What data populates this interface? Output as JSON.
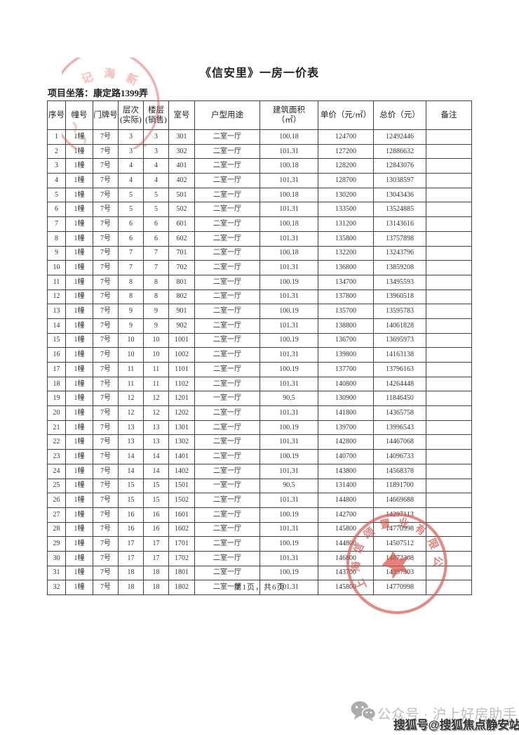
{
  "document": {
    "title": "《信安里》一房一价表",
    "project_location": "项目坐落：康定路1399弄",
    "page_footer": "第1页，共6页"
  },
  "table": {
    "headers": [
      "序号",
      "幢号",
      "门牌号",
      "层次\n(实际)",
      "楼层\n(销售)",
      "室号",
      "户型用途",
      "建筑面积\n（㎡）",
      "单价（元/㎡）",
      "总价（元）",
      "备注"
    ],
    "rows": [
      [
        "1",
        "1幢",
        "7号",
        "3",
        "3",
        "301",
        "二室一厅",
        "100.18",
        "124700",
        "12492446",
        ""
      ],
      [
        "2",
        "1幢",
        "7号",
        "3",
        "3",
        "302",
        "二室一厅",
        "101.31",
        "127200",
        "12886632",
        ""
      ],
      [
        "3",
        "1幢",
        "7号",
        "4",
        "4",
        "401",
        "二室一厅",
        "100.18",
        "128200",
        "12843076",
        ""
      ],
      [
        "4",
        "1幢",
        "7号",
        "4",
        "4",
        "402",
        "二室一厅",
        "101.31",
        "128700",
        "13038597",
        ""
      ],
      [
        "5",
        "1幢",
        "7号",
        "5",
        "5",
        "501",
        "二室一厅",
        "100.18",
        "130200",
        "13043436",
        ""
      ],
      [
        "6",
        "1幢",
        "7号",
        "5",
        "5",
        "502",
        "二室一厅",
        "101.31",
        "133500",
        "13524885",
        ""
      ],
      [
        "7",
        "1幢",
        "7号",
        "6",
        "6",
        "601",
        "二室一厅",
        "100.18",
        "131200",
        "13143616",
        ""
      ],
      [
        "8",
        "1幢",
        "7号",
        "6",
        "6",
        "602",
        "二室一厅",
        "101.31",
        "135800",
        "13757898",
        ""
      ],
      [
        "9",
        "1幢",
        "7号",
        "7",
        "7",
        "701",
        "二室一厅",
        "100.18",
        "132200",
        "13243796",
        ""
      ],
      [
        "10",
        "1幢",
        "7号",
        "7",
        "7",
        "702",
        "二室一厅",
        "101.31",
        "136800",
        "13859208",
        ""
      ],
      [
        "11",
        "1幢",
        "7号",
        "8",
        "8",
        "801",
        "二室一厅",
        "100.19",
        "134700",
        "13495593",
        ""
      ],
      [
        "12",
        "1幢",
        "7号",
        "8",
        "8",
        "802",
        "二室一厅",
        "101.31",
        "137800",
        "13960518",
        ""
      ],
      [
        "13",
        "1幢",
        "7号",
        "9",
        "9",
        "901",
        "二室一厅",
        "100.19",
        "135700",
        "13595783",
        ""
      ],
      [
        "14",
        "1幢",
        "7号",
        "9",
        "9",
        "902",
        "二室一厅",
        "101.31",
        "138800",
        "14061828",
        ""
      ],
      [
        "15",
        "1幢",
        "7号",
        "10",
        "10",
        "1001",
        "二室一厅",
        "100.19",
        "136700",
        "13695973",
        ""
      ],
      [
        "16",
        "1幢",
        "7号",
        "10",
        "10",
        "1002",
        "二室一厅",
        "101.31",
        "139800",
        "14163138",
        ""
      ],
      [
        "17",
        "1幢",
        "7号",
        "11",
        "11",
        "1101",
        "二室一厅",
        "100.19",
        "137700",
        "13796163",
        ""
      ],
      [
        "18",
        "1幢",
        "7号",
        "11",
        "11",
        "1102",
        "二室一厅",
        "101.31",
        "140800",
        "14264448",
        ""
      ],
      [
        "19",
        "1幢",
        "7号",
        "12",
        "12",
        "1201",
        "一室一厅",
        "90.5",
        "130900",
        "11846450",
        ""
      ],
      [
        "20",
        "1幢",
        "7号",
        "12",
        "12",
        "1202",
        "二室一厅",
        "101.31",
        "141800",
        "14365758",
        ""
      ],
      [
        "21",
        "1幢",
        "7号",
        "13",
        "13",
        "1301",
        "二室一厅",
        "100.19",
        "139700",
        "13996543",
        ""
      ],
      [
        "22",
        "1幢",
        "7号",
        "13",
        "13",
        "1302",
        "二室一厅",
        "101.31",
        "142800",
        "14467068",
        ""
      ],
      [
        "23",
        "1幢",
        "7号",
        "14",
        "14",
        "1401",
        "二室一厅",
        "100.19",
        "140700",
        "14096733",
        ""
      ],
      [
        "24",
        "1幢",
        "7号",
        "14",
        "14",
        "1402",
        "二室一厅",
        "101.31",
        "143800",
        "14568378",
        ""
      ],
      [
        "25",
        "1幢",
        "7号",
        "15",
        "15",
        "1501",
        "一室一厅",
        "90.5",
        "131400",
        "11891700",
        ""
      ],
      [
        "26",
        "1幢",
        "7号",
        "15",
        "15",
        "1502",
        "二室一厅",
        "101.31",
        "144800",
        "14669688",
        ""
      ],
      [
        "27",
        "1幢",
        "7号",
        "16",
        "16",
        "1601",
        "二室一厅",
        "100.19",
        "142700",
        "14297113",
        ""
      ],
      [
        "28",
        "1幢",
        "7号",
        "16",
        "16",
        "1602",
        "二室一厅",
        "101.31",
        "145800",
        "14770998",
        ""
      ],
      [
        "29",
        "1幢",
        "7号",
        "17",
        "17",
        "1701",
        "二室一厅",
        "100.19",
        "144800",
        "14507512",
        ""
      ],
      [
        "30",
        "1幢",
        "7号",
        "17",
        "17",
        "1702",
        "二室一厅",
        "101.31",
        "146800",
        "14872308",
        ""
      ],
      [
        "31",
        "1幢",
        "7号",
        "18",
        "18",
        "1801",
        "二室一厅",
        "100.19",
        "143700",
        "14397303",
        ""
      ],
      [
        "32",
        "1幢",
        "7号",
        "18",
        "18",
        "1802",
        "二室一厅",
        "101.31",
        "145800",
        "14770998",
        ""
      ]
    ]
  },
  "stamps": {
    "company_seal": {
      "text": "上海信颂置业有限公司",
      "color": "#d9534a"
    },
    "partial_seal": {
      "chars": [
        "记",
        "海",
        "新"
      ],
      "color": "#d9534a"
    }
  },
  "watermark": {
    "wechat_account": "公众号 · 沪上好房助手",
    "sohu_account": "搜狐号@搜狐焦点静安站"
  }
}
